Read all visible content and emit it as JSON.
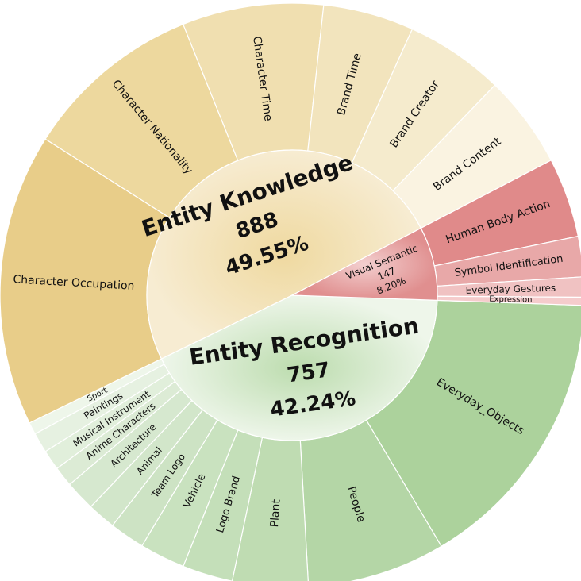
{
  "chart_data": {
    "type": "sunburst",
    "inner": [
      {
        "name": "Entity Knowledge",
        "value": 888,
        "percent": "49.55%",
        "color": "#f1dfb0"
      },
      {
        "name": "Visual Semantic",
        "value": 147,
        "percent": "8.20%",
        "color": "#eab0b0"
      },
      {
        "name": "Entity Recognition",
        "value": 757,
        "percent": "42.24%",
        "color": "#cde5c4"
      }
    ],
    "outer": [
      {
        "name": "Brand Content",
        "parent": "Entity Knowledge",
        "value": 92,
        "color": "#faf3e1"
      },
      {
        "name": "Brand Creator",
        "parent": "Entity Knowledge",
        "value": 98,
        "color": "#f5ebcd"
      },
      {
        "name": "Brand Time",
        "parent": "Entity Knowledge",
        "value": 90,
        "color": "#f2e4bd"
      },
      {
        "name": "Character Time",
        "parent": "Entity Knowledge",
        "value": 140,
        "color": "#f0dfb0"
      },
      {
        "name": "Character Nationality",
        "parent": "Entity Knowledge",
        "value": 178,
        "color": "#edd89e"
      },
      {
        "name": "Character Occupation",
        "parent": "Entity Knowledge",
        "value": 290,
        "color": "#e8cd89"
      },
      {
        "name": "Sport",
        "parent": "Entity Recognition",
        "value": 12,
        "color": "#eef6ea"
      },
      {
        "name": "Paintings",
        "parent": "Entity Recognition",
        "value": 20,
        "color": "#e6f1e1"
      },
      {
        "name": "Musical Instrument",
        "parent": "Entity Recognition",
        "value": 20,
        "color": "#e1efdb"
      },
      {
        "name": "Anime Characters",
        "parent": "Entity Recognition",
        "value": 20,
        "color": "#dcebd5"
      },
      {
        "name": "Architecture",
        "parent": "Entity Recognition",
        "value": 30,
        "color": "#d6e8cf"
      },
      {
        "name": "Animal",
        "parent": "Entity Recognition",
        "value": 28,
        "color": "#d2e6ca"
      },
      {
        "name": "Team Logo",
        "parent": "Entity Recognition",
        "value": 35,
        "color": "#cde3c4"
      },
      {
        "name": "Vehicle",
        "parent": "Entity Recognition",
        "value": 45,
        "color": "#c9e2bf"
      },
      {
        "name": "Logo Brand",
        "parent": "Entity Recognition",
        "value": 50,
        "color": "#c4dfb9"
      },
      {
        "name": "Plant",
        "parent": "Entity Recognition",
        "value": 75,
        "color": "#bfdcb2"
      },
      {
        "name": "People",
        "parent": "Entity Recognition",
        "value": 137,
        "color": "#b4d6a6"
      },
      {
        "name": "Everyday_Objects",
        "parent": "Entity Recognition",
        "value": 285,
        "color": "#acd29c"
      },
      {
        "name": "Expression",
        "parent": "Visual Semantic",
        "value": 8,
        "color": "#f5cccc"
      },
      {
        "name": "Everyday Gestures",
        "parent": "Visual Semantic",
        "value": 20,
        "color": "#f0c2c2"
      },
      {
        "name": "Symbol Identification",
        "parent": "Visual Semantic",
        "value": 40,
        "color": "#e8a8a8"
      },
      {
        "name": "Human Body Action",
        "parent": "Visual Semantic",
        "value": 79,
        "color": "#e08a8a"
      }
    ]
  }
}
